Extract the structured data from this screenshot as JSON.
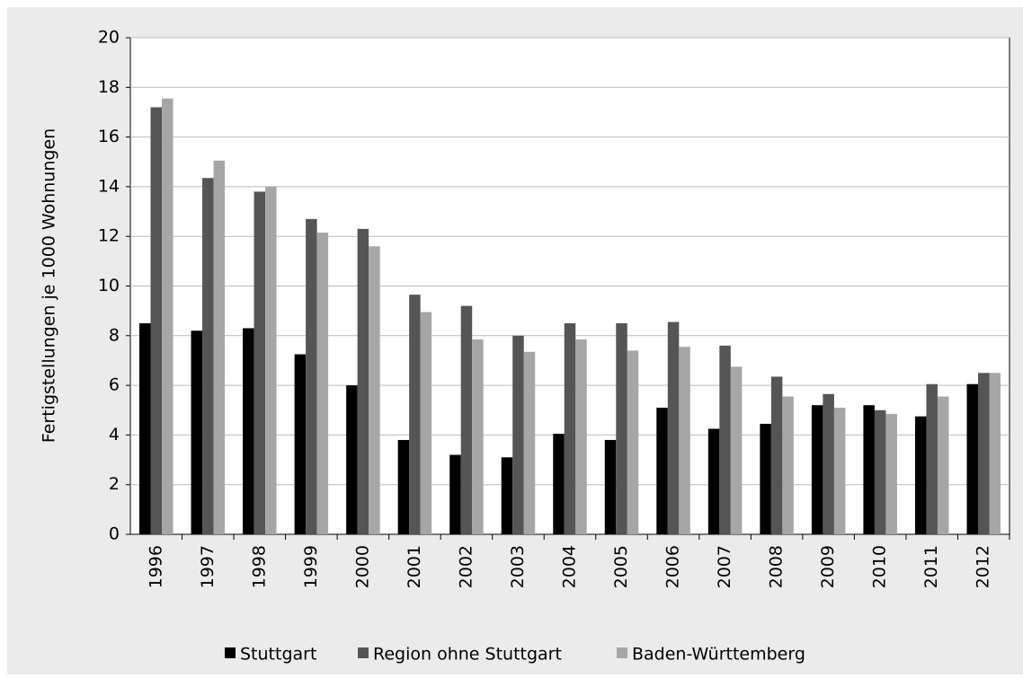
{
  "chart_data": {
    "type": "bar",
    "y_label": "Fertigstellungen je 1000 Wohnungen",
    "categories": [
      "1996",
      "1997",
      "1998",
      "1999",
      "2000",
      "2001",
      "2002",
      "2003",
      "2004",
      "2005",
      "2006",
      "2007",
      "2008",
      "2009",
      "2010",
      "2011",
      "2012"
    ],
    "series": [
      {
        "name": "Stuttgart",
        "color": "#000000",
        "values": [
          8.5,
          8.2,
          8.3,
          7.25,
          6.0,
          3.8,
          3.2,
          3.1,
          4.05,
          3.8,
          5.1,
          4.25,
          4.45,
          5.2,
          5.2,
          4.75,
          6.05
        ]
      },
      {
        "name": "Region ohne Stuttgart",
        "color": "#555555",
        "values": [
          17.2,
          14.35,
          13.8,
          12.7,
          12.3,
          9.65,
          9.2,
          8.0,
          8.5,
          8.5,
          8.55,
          7.6,
          6.35,
          5.65,
          5.0,
          6.05,
          6.5
        ]
      },
      {
        "name": "Baden-Württemberg",
        "color": "#a6a6a6",
        "values": [
          17.55,
          15.05,
          14.0,
          12.15,
          11.6,
          8.95,
          7.85,
          7.35,
          7.85,
          7.4,
          7.55,
          6.75,
          5.55,
          5.1,
          4.85,
          5.55,
          6.5
        ]
      }
    ],
    "ylim": [
      0,
      20
    ],
    "yticks": [
      0,
      2,
      4,
      6,
      8,
      10,
      12,
      14,
      16,
      18,
      20
    ],
    "grid": true,
    "legend": "bottom"
  }
}
